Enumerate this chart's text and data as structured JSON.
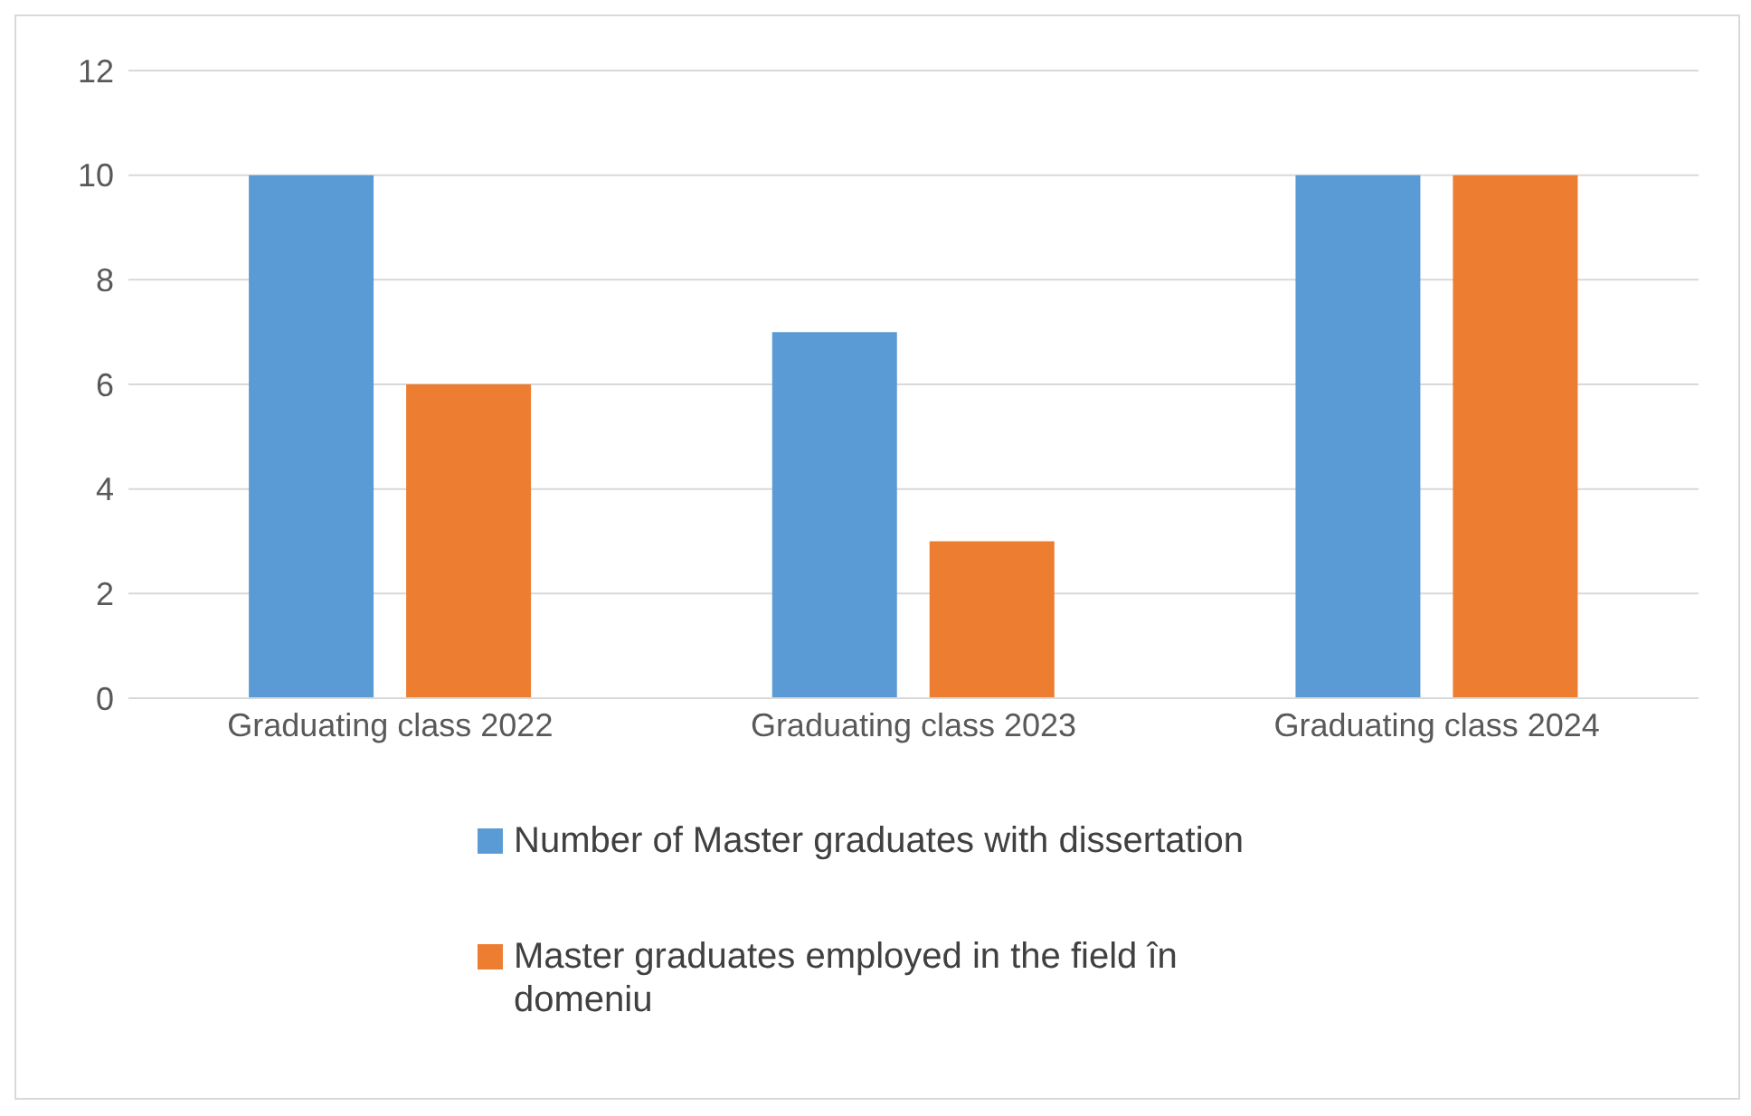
{
  "chart_data": {
    "type": "bar",
    "categories": [
      "Graduating class 2022",
      "Graduating class 2023",
      "Graduating class 2024"
    ],
    "series": [
      {
        "name": "Number of Master graduates with dissertation",
        "color": "#5b9bd5",
        "values": [
          10,
          7,
          10
        ]
      },
      {
        "name": "Master graduates employed in the field în domeniu",
        "color": "#ed7d31",
        "values": [
          6,
          3,
          10
        ]
      }
    ],
    "ylim": [
      0,
      12
    ],
    "yticks": [
      0,
      2,
      4,
      6,
      8,
      10,
      12
    ],
    "grid": "y",
    "legend": "bottom"
  }
}
